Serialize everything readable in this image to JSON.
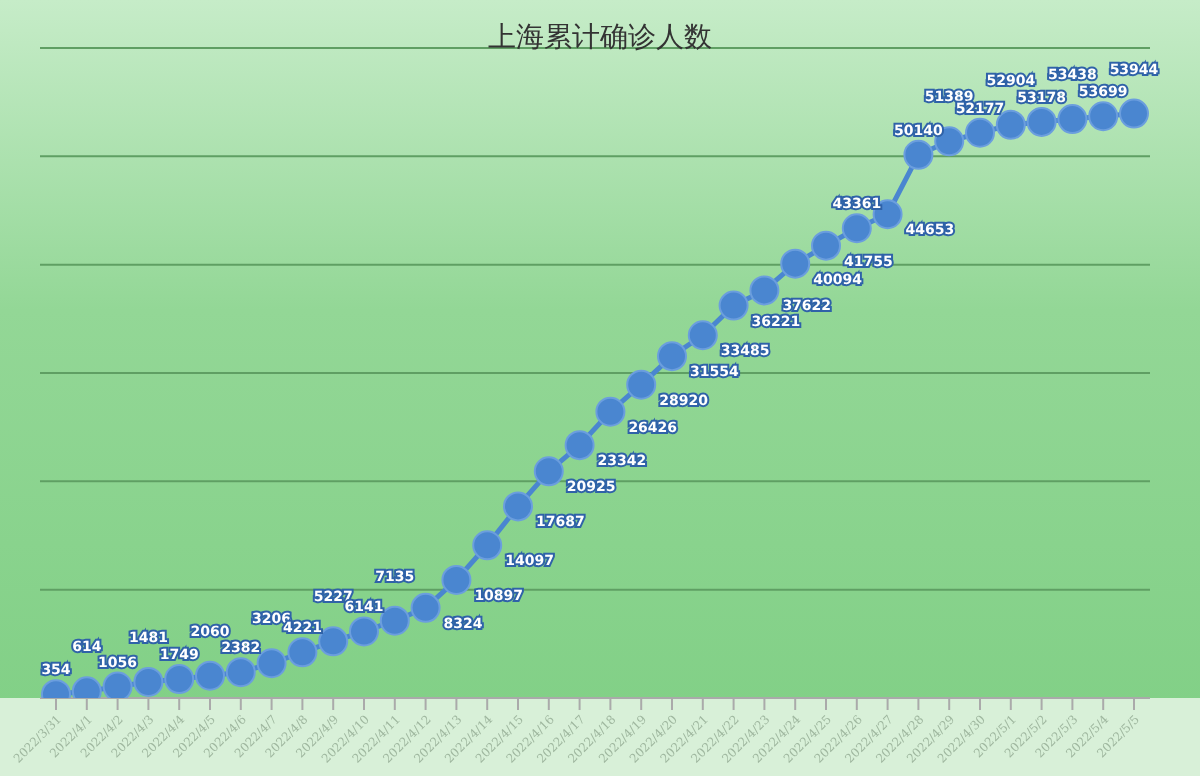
{
  "chart_data": {
    "type": "line",
    "title": "上海累计确诊人数",
    "grid": "y",
    "marker": "circle",
    "line_style": "solid",
    "data_labels": true,
    "legend": false,
    "tick_labels": "x",
    "ylim": [
      0,
      60000
    ],
    "yticks": [
      {
        "value": 0,
        "label": null
      },
      {
        "value": 10000,
        "label": null
      },
      {
        "value": 20000,
        "label": null
      },
      {
        "value": 30000,
        "label": null
      },
      {
        "value": 40000,
        "label": null
      },
      {
        "value": 50000,
        "label": null
      },
      {
        "value": 60000,
        "label": null
      }
    ],
    "categories": [
      "2022/3/31",
      "2022/4/1",
      "2022/4/2",
      "2022/4/3",
      "2022/4/4",
      "2022/4/5",
      "2022/4/6",
      "2022/4/7",
      "2022/4/8",
      "2022/4/9",
      "2022/4/10",
      "2022/4/11",
      "2022/4/12",
      "2022/4/13",
      "2022/4/14",
      "2022/4/15",
      "2022/4/16",
      "2022/4/17",
      "2022/4/18",
      "2022/4/19",
      "2022/4/20",
      "2022/4/21",
      "2022/4/22",
      "2022/4/23",
      "2022/4/24",
      "2022/4/25",
      "2022/4/26",
      "2022/4/27",
      "2022/4/28",
      "2022/4/29",
      "2022/4/30",
      "2022/5/1",
      "2022/5/2",
      "2022/5/3",
      "2022/5/4",
      "2022/5/5"
    ],
    "series": [
      {
        "color": "#4a86d0",
        "values": [
          354,
          614,
          1056,
          1481,
          1749,
          2060,
          2382,
          3206,
          4221,
          5227,
          6141,
          7135,
          8324,
          10897,
          14097,
          17687,
          20925,
          23342,
          26426,
          28920,
          31554,
          33485,
          36221,
          37622,
          40094,
          41755,
          43361,
          44653,
          50140,
          51389,
          52177,
          52904,
          53178,
          53438,
          53699,
          53944
        ]
      }
    ]
  }
}
